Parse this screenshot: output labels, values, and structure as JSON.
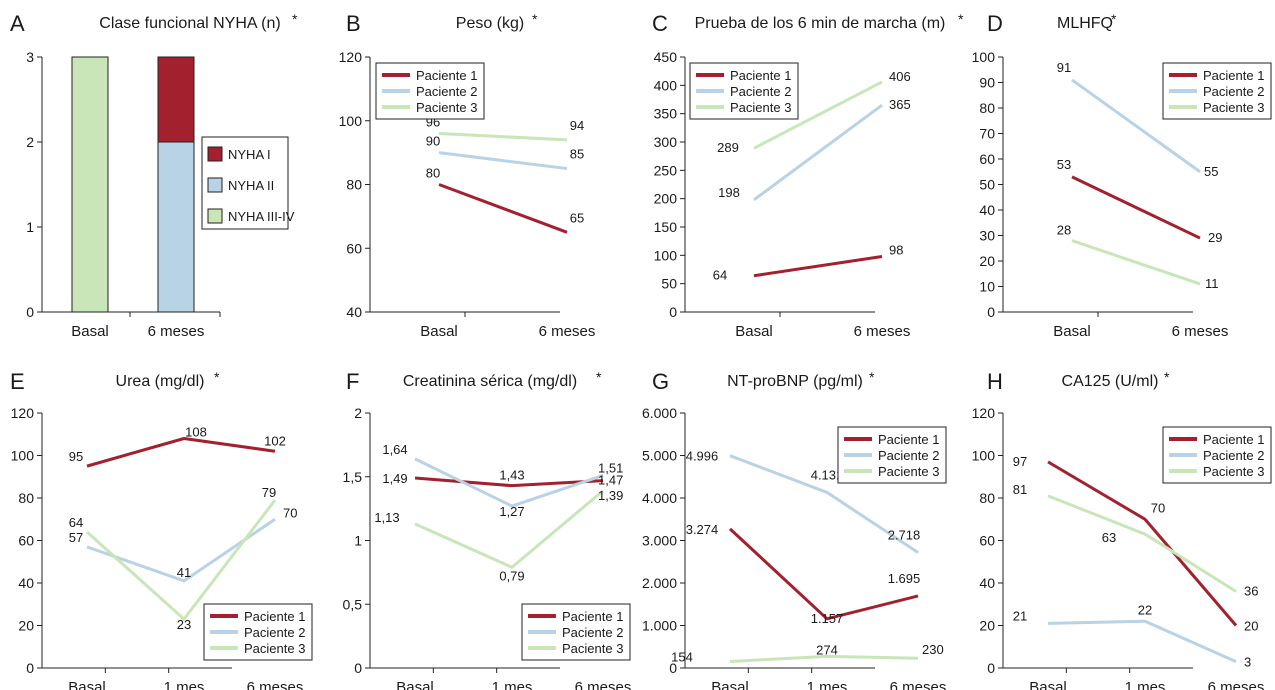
{
  "colors": {
    "p1": "#a3212e",
    "p2": "#b8d2e6",
    "p3": "#c9e6b8",
    "axis": "#222222"
  },
  "chart_data": [
    {
      "panel": "A",
      "title": "Clase funcional NYHA (n)",
      "type": "bar",
      "categories": [
        "Basal",
        "6 meses"
      ],
      "ylim": [
        0,
        3
      ],
      "yticks": [
        "0",
        "1",
        "2",
        "3"
      ],
      "series": [
        {
          "name": "NYHA I",
          "color": "p1",
          "values": [
            0,
            1
          ]
        },
        {
          "name": "NYHA II",
          "color": "p2",
          "values": [
            0,
            2
          ]
        },
        {
          "name": "NYHA III-IV",
          "color": "p3",
          "values": [
            3,
            0
          ]
        }
      ],
      "legend": "right"
    },
    {
      "panel": "B",
      "title": "Peso (kg)",
      "type": "line",
      "categories": [
        "Basal",
        "6 meses"
      ],
      "ylim": [
        40,
        120
      ],
      "yticks": [
        "40",
        "60",
        "80",
        "100",
        "120"
      ],
      "series": [
        {
          "name": "Paciente 1",
          "color": "p1",
          "values": [
            80,
            65
          ],
          "labels": [
            "80",
            "65"
          ]
        },
        {
          "name": "Paciente 2",
          "color": "p2",
          "values": [
            90,
            85
          ],
          "labels": [
            "90",
            "85"
          ]
        },
        {
          "name": "Paciente 3",
          "color": "p3",
          "values": [
            96,
            94
          ],
          "labels": [
            "96",
            "94"
          ]
        }
      ],
      "legend": "top-left"
    },
    {
      "panel": "C",
      "title": "Prueba de los 6 min de marcha (m)",
      "type": "line",
      "categories": [
        "Basal",
        "6 meses"
      ],
      "ylim": [
        0,
        450
      ],
      "yticks": [
        "0",
        "50",
        "100",
        "150",
        "200",
        "250",
        "300",
        "350",
        "400",
        "450"
      ],
      "series": [
        {
          "name": "Paciente 1",
          "color": "p1",
          "values": [
            64,
            98
          ],
          "labels": [
            "64",
            "98"
          ]
        },
        {
          "name": "Paciente 2",
          "color": "p2",
          "values": [
            198,
            365
          ],
          "labels": [
            "198",
            "365"
          ]
        },
        {
          "name": "Paciente 3",
          "color": "p3",
          "values": [
            289,
            406
          ],
          "labels": [
            "289",
            "406"
          ]
        }
      ],
      "legend": "top-left"
    },
    {
      "panel": "D",
      "title": "MLHFQ",
      "type": "line",
      "categories": [
        "Basal",
        "6 meses"
      ],
      "ylim": [
        0,
        100
      ],
      "yticks": [
        "0",
        "10",
        "20",
        "30",
        "40",
        "50",
        "60",
        "70",
        "80",
        "90",
        "100"
      ],
      "series": [
        {
          "name": "Paciente 1",
          "color": "p1",
          "values": [
            53,
            29
          ],
          "labels": [
            "53",
            "29"
          ]
        },
        {
          "name": "Paciente 2",
          "color": "p2",
          "values": [
            91,
            55
          ],
          "labels": [
            "91",
            "55"
          ]
        },
        {
          "name": "Paciente 3",
          "color": "p3",
          "values": [
            28,
            11
          ],
          "labels": [
            "28",
            "11"
          ]
        }
      ],
      "legend": "top-right"
    },
    {
      "panel": "E",
      "title": "Urea (mg/dl)",
      "type": "line",
      "categories": [
        "Basal",
        "1 mes",
        "6 meses"
      ],
      "ylim": [
        0,
        120
      ],
      "yticks": [
        "0",
        "20",
        "40",
        "60",
        "80",
        "100",
        "120"
      ],
      "series": [
        {
          "name": "Paciente 1",
          "color": "p1",
          "values": [
            95,
            108,
            102
          ],
          "labels": [
            "95",
            "108",
            "102"
          ]
        },
        {
          "name": "Paciente 2",
          "color": "p2",
          "values": [
            57,
            41,
            70
          ],
          "labels": [
            "57",
            "41",
            "70"
          ]
        },
        {
          "name": "Paciente 3",
          "color": "p3",
          "values": [
            64,
            23,
            79
          ],
          "labels": [
            "64",
            "23",
            "79"
          ]
        }
      ],
      "legend": "bottom-right"
    },
    {
      "panel": "F",
      "title": "Creatinina sérica (mg/dl)",
      "type": "line",
      "categories": [
        "Basal",
        "1 mes",
        "6 meses"
      ],
      "ylim": [
        0,
        2
      ],
      "yticks": [
        "0",
        "0,5",
        "1",
        "1,5",
        "2"
      ],
      "series": [
        {
          "name": "Paciente 1",
          "color": "p1",
          "values": [
            1.49,
            1.43,
            1.47
          ],
          "labels": [
            "1,49",
            "1,43",
            "1,47"
          ]
        },
        {
          "name": "Paciente 2",
          "color": "p2",
          "values": [
            1.64,
            1.27,
            1.51
          ],
          "labels": [
            "1,64",
            "1,27",
            "1,51"
          ]
        },
        {
          "name": "Paciente 3",
          "color": "p3",
          "values": [
            1.13,
            0.79,
            1.39
          ],
          "labels": [
            "1,13",
            "0,79",
            "1,39"
          ]
        }
      ],
      "legend": "bottom-right"
    },
    {
      "panel": "G",
      "title": "NT-proBNP (pg/ml)",
      "type": "line",
      "categories": [
        "Basal",
        "1 mes",
        "6 meses"
      ],
      "ylim": [
        0,
        6000
      ],
      "yticks": [
        "0",
        "1.000",
        "2.000",
        "3.000",
        "4.000",
        "5.000",
        "6.000"
      ],
      "series": [
        {
          "name": "Paciente 1",
          "color": "p1",
          "values": [
            3274,
            1157,
            1695
          ],
          "labels": [
            "3.274",
            "1.157",
            "1.695"
          ]
        },
        {
          "name": "Paciente 2",
          "color": "p2",
          "values": [
            4996,
            4131,
            2718
          ],
          "labels": [
            "4.996",
            "4.131",
            "2.718"
          ]
        },
        {
          "name": "Paciente 3",
          "color": "p3",
          "values": [
            154,
            274,
            230
          ],
          "labels": [
            "154",
            "274",
            "230"
          ]
        }
      ],
      "legend": "top-right"
    },
    {
      "panel": "H",
      "title": "CA125 (U/ml)",
      "type": "line",
      "categories": [
        "Basal",
        "1 mes",
        "6 meses"
      ],
      "ylim": [
        0,
        120
      ],
      "yticks": [
        "0",
        "20",
        "40",
        "60",
        "80",
        "100",
        "120"
      ],
      "series": [
        {
          "name": "Paciente 1",
          "color": "p1",
          "values": [
            97,
            70,
            20
          ],
          "labels": [
            "97",
            "70",
            "20"
          ]
        },
        {
          "name": "Paciente 2",
          "color": "p2",
          "values": [
            21,
            22,
            3
          ],
          "labels": [
            "21",
            "22",
            "3"
          ]
        },
        {
          "name": "Paciente 3",
          "color": "p3",
          "values": [
            81,
            63,
            36
          ],
          "labels": [
            "81",
            "63",
            "36"
          ]
        }
      ],
      "legend": "top-right"
    }
  ]
}
